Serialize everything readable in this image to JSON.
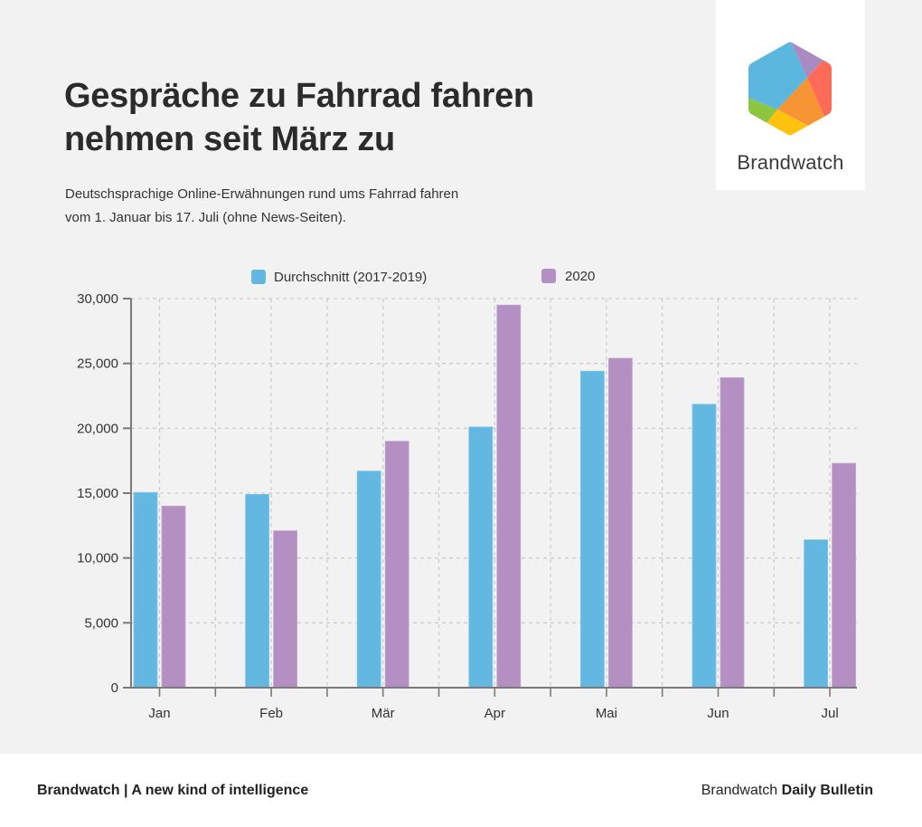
{
  "header": {
    "title_lines": [
      "Gespräche zu Fahrrad fahren",
      "nehmen seit März zu"
    ],
    "subtitle_lines": [
      "Deutschsprachige Online-Erwähnungen rund ums Fahrrad fahren",
      "vom 1. Januar bis 17. Juli (ohne News-Seiten)."
    ]
  },
  "logo": {
    "name": "Brandwatch",
    "icon": "brandwatch-hexagon-logo",
    "colors": [
      "#5bb7dd",
      "#a98bc2",
      "#ff6b57",
      "#f79433",
      "#ffc30f",
      "#8cc63f"
    ]
  },
  "footer": {
    "left": "Brandwatch | A new kind of intelligence",
    "right_regular": "Brandwatch ",
    "right_bold": "Daily Bulletin"
  },
  "chart_data": {
    "type": "bar",
    "title": "Gespräche zu Fahrrad fahren nehmen seit März zu",
    "xlabel": "",
    "ylabel": "",
    "categories": [
      "Jan",
      "Feb",
      "Mär",
      "Apr",
      "Mai",
      "Jun",
      "Jul"
    ],
    "series": [
      {
        "name": "Durchschnitt (2017-2019)",
        "color": "#62b8e0",
        "values": [
          15050,
          14900,
          16700,
          20100,
          24400,
          21850,
          11400
        ]
      },
      {
        "name": "2020",
        "color": "#b38fc2",
        "values": [
          14000,
          12100,
          19000,
          29500,
          25400,
          23900,
          17300
        ]
      }
    ],
    "ylim": [
      0,
      30000
    ],
    "yticks": [
      0,
      5000,
      10000,
      15000,
      20000,
      25000,
      30000
    ],
    "ytick_labels": [
      "0",
      "5,000",
      "10,000",
      "15,000",
      "20,000",
      "25,000",
      "30,000"
    ],
    "grid": true,
    "legend": "top"
  }
}
